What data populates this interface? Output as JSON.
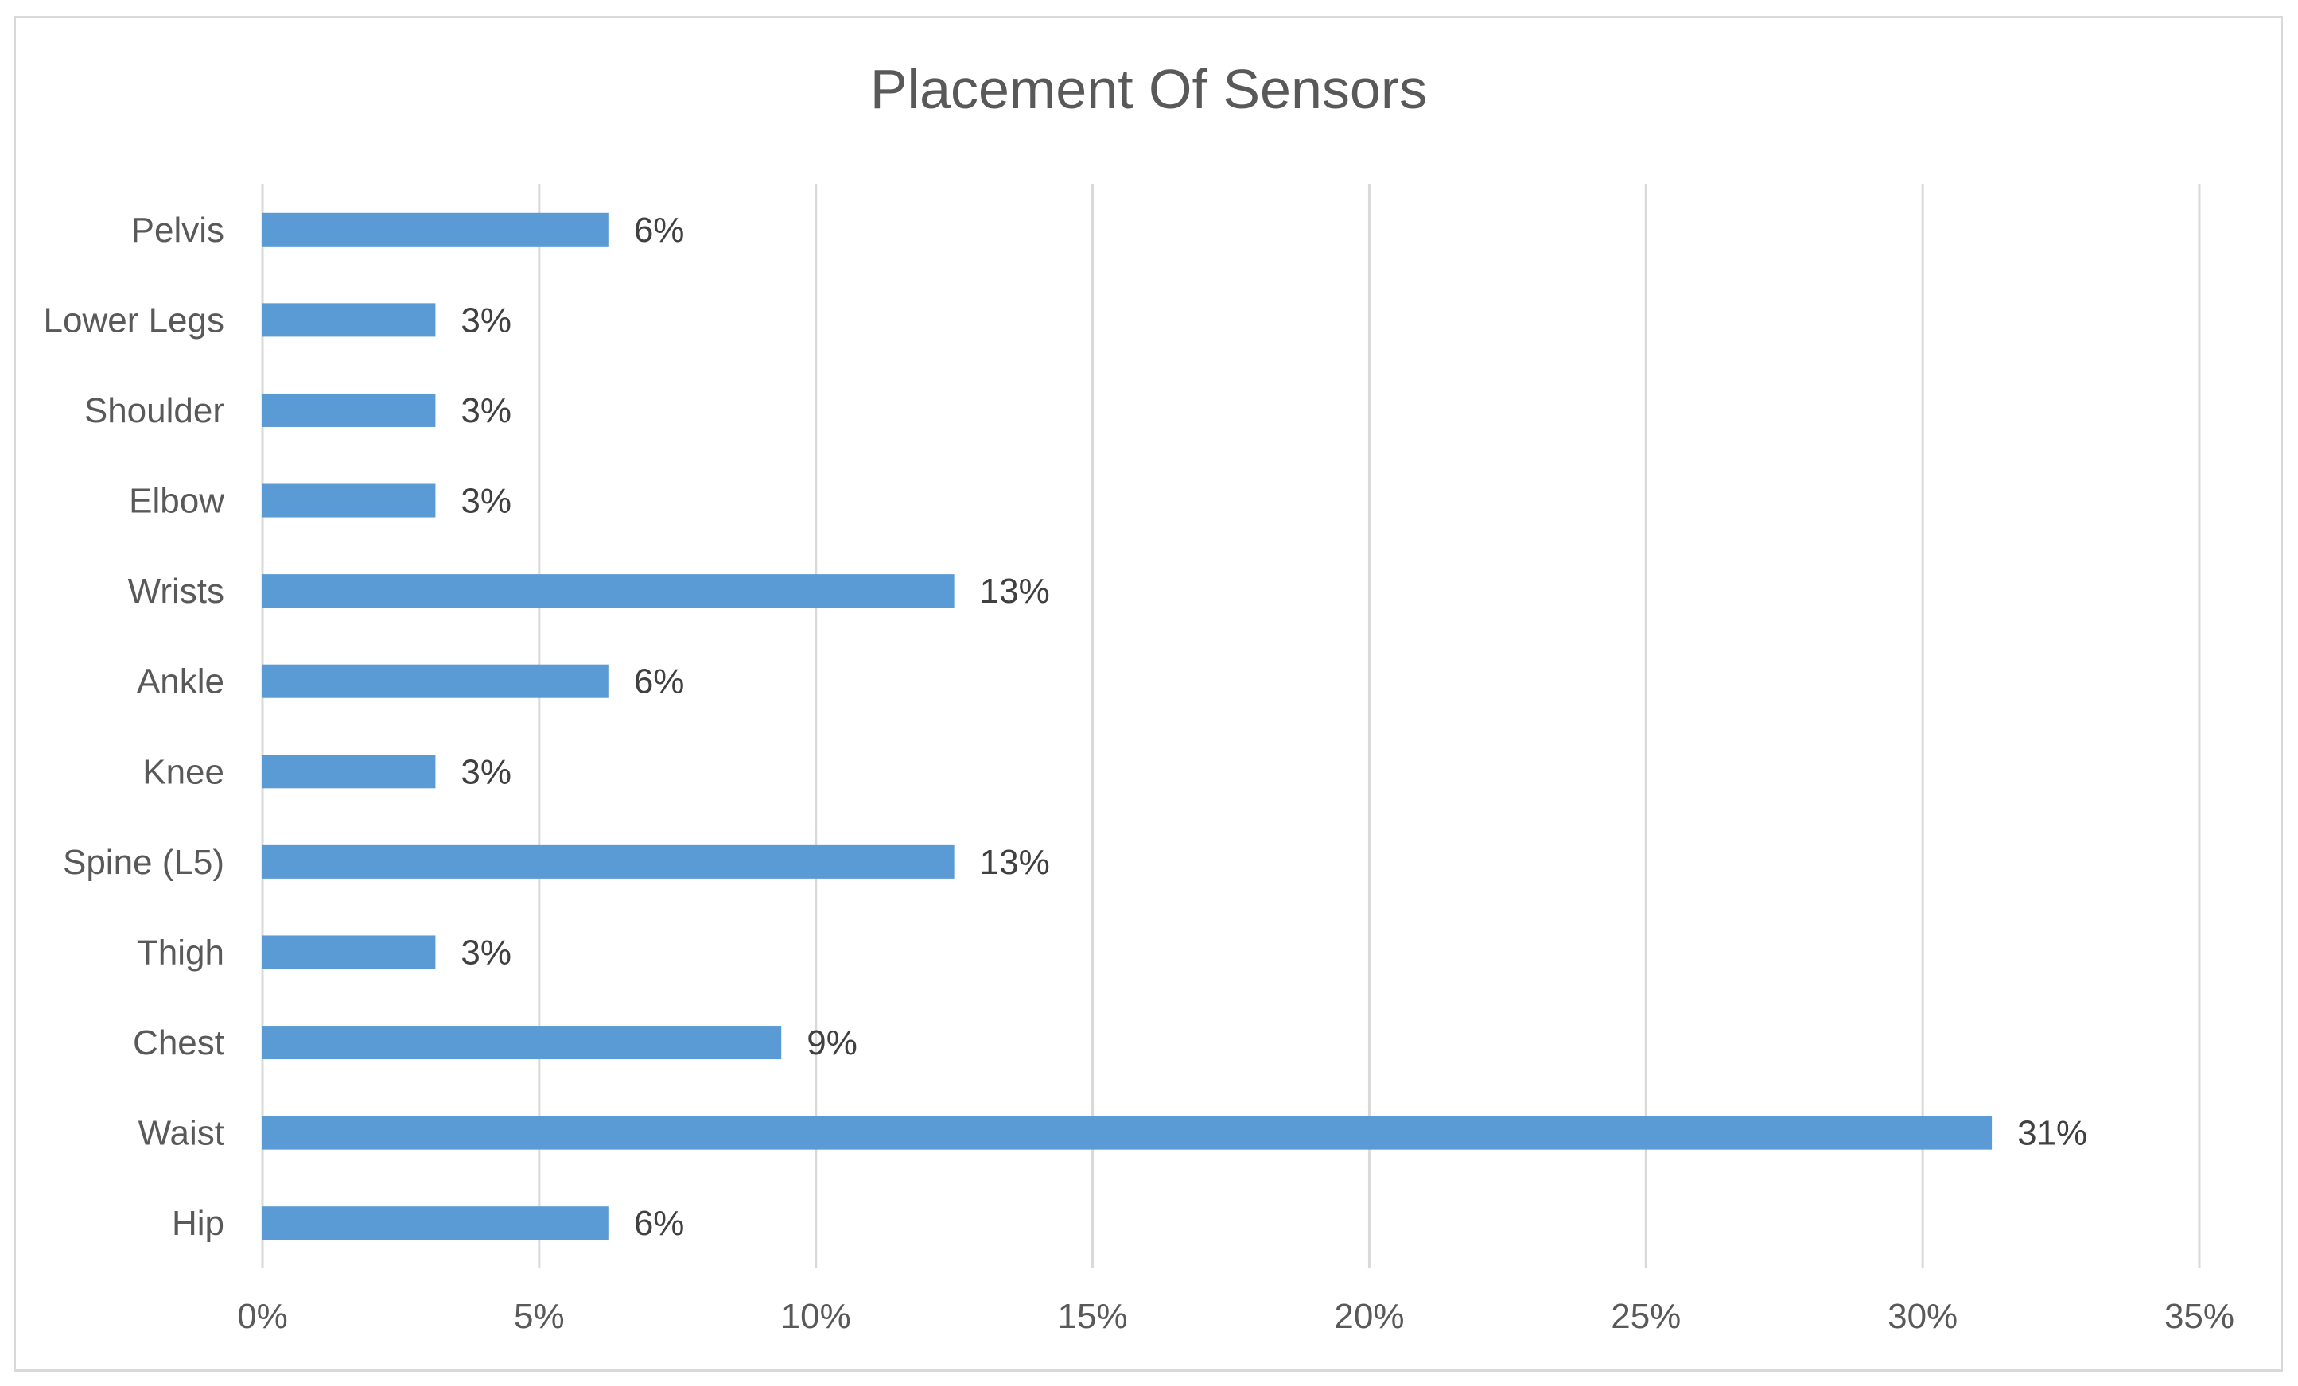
{
  "chart_data": {
    "type": "bar",
    "orientation": "horizontal",
    "title": "Placement Of Sensors",
    "xlabel": "",
    "ylabel": "",
    "categories": [
      "Hip",
      "Waist",
      "Chest",
      "Thigh",
      "Spine (L5)",
      "Knee",
      "Ankle",
      "Wrists",
      "Elbow",
      "Shoulder",
      "Lower Legs",
      "Pelvis"
    ],
    "values": [
      6.25,
      31.25,
      9.375,
      3.125,
      12.5,
      3.125,
      6.25,
      12.5,
      3.125,
      3.125,
      3.125,
      6.25
    ],
    "data_labels": [
      "6%",
      "31%",
      "9%",
      "3%",
      "13%",
      "3%",
      "6%",
      "13%",
      "3%",
      "3%",
      "3%",
      "6%"
    ],
    "xlim": [
      0,
      35
    ],
    "x_ticks": [
      0,
      5,
      10,
      15,
      20,
      25,
      30,
      35
    ],
    "x_tick_labels": [
      "0%",
      "5%",
      "10%",
      "15%",
      "20%",
      "25%",
      "30%",
      "35%"
    ],
    "grid": "vertical",
    "legend": "none",
    "bar_color": "#5b9bd5",
    "grid_color": "#d9d9d9"
  }
}
